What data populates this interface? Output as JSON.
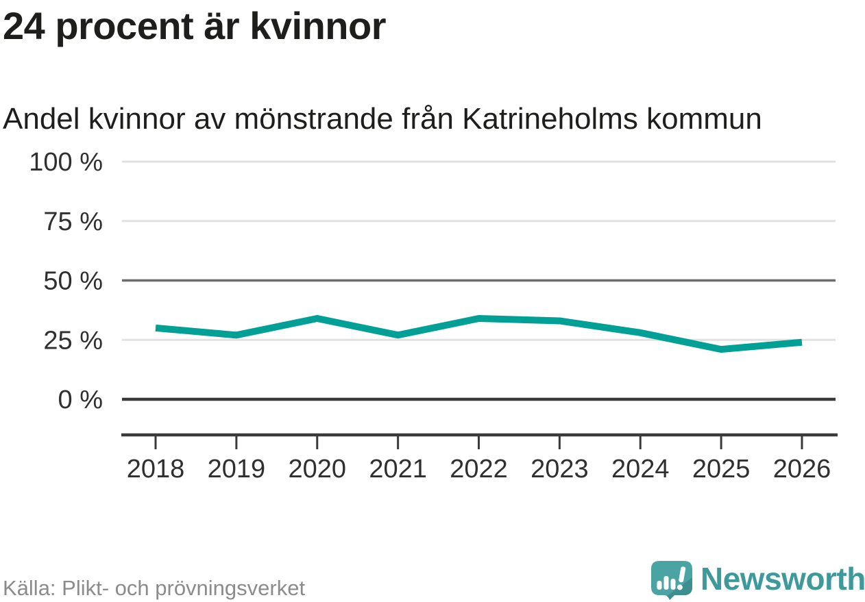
{
  "chart_data": {
    "type": "line",
    "title": "24 procent är kvinnor",
    "subtitle": "Andel kvinnor av mönstrande från Katrineholms kommun",
    "x": [
      2018,
      2019,
      2020,
      2021,
      2022,
      2023,
      2024,
      2025,
      2026
    ],
    "x_tick_labels": [
      "2018",
      "2019",
      "2020",
      "2021",
      "2022",
      "2023",
      "2024",
      "2025",
      "2026"
    ],
    "series": [
      {
        "name": "Andel kvinnor av mönstrande",
        "values": [
          30,
          27,
          34,
          27,
          34,
          33,
          28,
          21,
          24
        ],
        "color": "#00a096"
      }
    ],
    "xlabel": "",
    "ylabel": "",
    "unit": "%",
    "ylim": [
      0,
      100
    ],
    "y_ticks": [
      100,
      75,
      50,
      25,
      0
    ],
    "y_tick_labels": [
      "100 %",
      "75 %",
      "50 %",
      "25 %",
      "0 %"
    ],
    "grid": true,
    "legend": "none"
  },
  "footer": {
    "source": "Källa: Plikt- och prövningsverket",
    "brand": "Newsworthy"
  },
  "colors": {
    "line": "#00a096",
    "grid_light": "#e1e1e1",
    "grid_mid": "#6b6b6b",
    "grid_zero": "#3a3a3a",
    "axis": "#3a3a3a",
    "title_text": "#1e1e1c",
    "tick_text": "#2f2f2f",
    "source_text": "#8b8b8b",
    "brand_teal": "#3e999a",
    "icon_teal": "#4aa4a3",
    "icon_teal_dark": "#3c8e8f"
  },
  "icons": {
    "logo_icon": "newsworthy-bar-chart-speech-bubble-icon"
  }
}
